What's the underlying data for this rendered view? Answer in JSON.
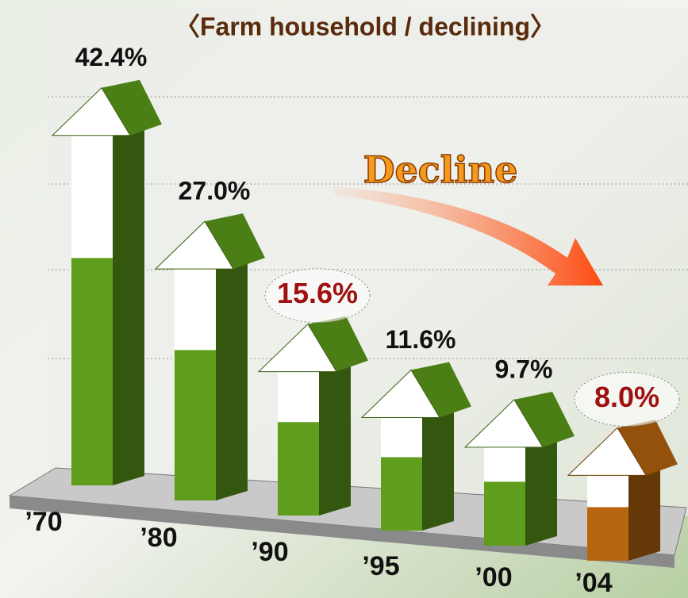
{
  "chart_data": {
    "type": "arrow-bar",
    "title": "〈Farm household / declining〉",
    "annotation": "Decline",
    "categories": [
      "’70",
      "’80",
      "’90",
      "’95",
      "’00",
      "’04"
    ],
    "values": [
      42.4,
      27.0,
      15.6,
      11.6,
      9.7,
      8.0
    ],
    "value_labels": [
      "42.4%",
      "27.0%",
      "15.6%",
      "11.6%",
      "9.7%",
      "8.0%"
    ],
    "colors": [
      "#5f9e1c",
      "#5f9e1c",
      "#5f9e1c",
      "#5f9e1c",
      "#5f9e1c",
      "#b8650f"
    ],
    "value_label_colors": [
      "#111111",
      "#111111",
      "#a01010",
      "#111111",
      "#111111",
      "#a01010"
    ]
  }
}
